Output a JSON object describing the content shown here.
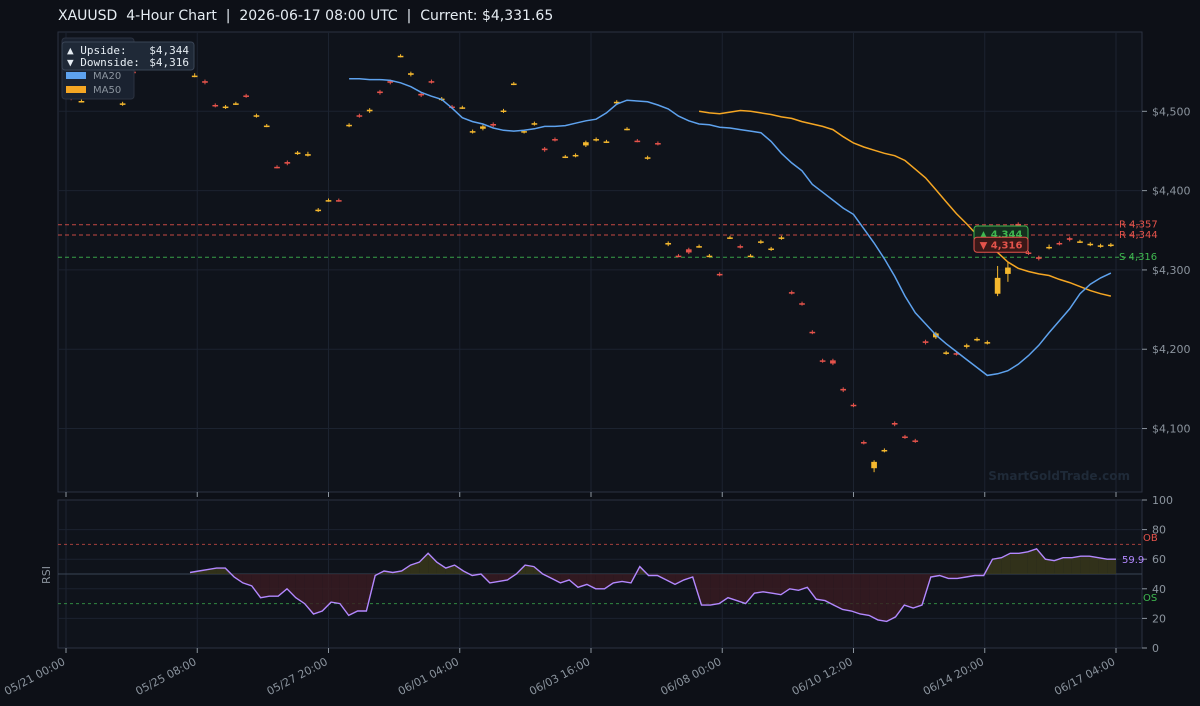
{
  "title": "XAUUSD  4-Hour Chart  |  2026-06-17 08:00 UTC  |  Current: $4,331.65",
  "watermark": "SmartGoldTrade.com",
  "colors": {
    "background": "#0d1017",
    "panel": "#0f131b",
    "grid": "#1c2330",
    "up": "#f5b82e",
    "down": "#e5534b",
    "ma20": "#5ea2ee",
    "ma50": "#f5a623",
    "rsi": "#b388ff",
    "resistance": "#e5534b",
    "support": "#3fb950"
  },
  "legend": {
    "upside_label": "▲ Upside:",
    "upside_value": "$4,344",
    "downside_label": "▼ Downside:",
    "downside_value": "$4,316",
    "ma20_label": "MA20",
    "ma50_label": "MA50"
  },
  "chart_data": {
    "type": "candlestick",
    "x_ticks": [
      "05/21 00:00",
      "05/25 08:00",
      "05/27 20:00",
      "06/01 04:00",
      "06/03 16:00",
      "06/08 00:00",
      "06/10 12:00",
      "06/14 20:00",
      "06/17 04:00"
    ],
    "price_axis": {
      "ylim": [
        4020,
        4600
      ],
      "ticks": [
        "$4,100",
        "$4,200",
        "$4,300",
        "$4,400",
        "$4,500"
      ],
      "tick_values": [
        4100,
        4200,
        4300,
        4400,
        4500
      ]
    },
    "levels": [
      {
        "label": "R 4,357",
        "value": 4357,
        "kind": "resistance"
      },
      {
        "label": "R 4,344",
        "value": 4344,
        "kind": "resistance"
      },
      {
        "label": "S 4,316",
        "value": 4316,
        "kind": "support"
      }
    ],
    "badges": [
      {
        "text": "▲ 4,344",
        "kind": "support"
      },
      {
        "text": "▼ 4,316",
        "kind": "resistance"
      }
    ],
    "candles": [
      [
        4518,
        4516,
        4520,
        4514
      ],
      [
        4513,
        4513,
        4515,
        4511
      ],
      [
        4520,
        4522,
        4524,
        4518
      ],
      [
        4520,
        4517,
        4521,
        4516
      ],
      [
        4520,
        4519,
        4521,
        4518
      ],
      [
        4509,
        4510,
        4512,
        4507
      ],
      [
        4550,
        4548,
        4552,
        4546
      ],
      [
        4564,
        4568,
        4570,
        4562
      ],
      [
        4568,
        4568,
        4570,
        4566
      ],
      [
        4573,
        4573,
        4575,
        4571
      ],
      [
        4570,
        4570,
        4572,
        4568
      ],
      [
        4562,
        4558,
        4564,
        4556
      ],
      [
        4545,
        4545,
        4548,
        4543
      ],
      [
        4538,
        4536,
        4540,
        4534
      ],
      [
        4508,
        4507,
        4510,
        4505
      ],
      [
        4505,
        4506,
        4508,
        4503
      ],
      [
        4510,
        4510,
        4512,
        4508
      ],
      [
        4520,
        4519,
        4522,
        4517
      ],
      [
        4494,
        4495,
        4497,
        4492
      ],
      [
        4482,
        4482,
        4484,
        4480
      ],
      [
        4430,
        4429,
        4432,
        4428
      ],
      [
        4436,
        4434,
        4438,
        4432
      ],
      [
        4447,
        4448,
        4450,
        4445
      ],
      [
        4444,
        4446,
        4449,
        4443
      ],
      [
        4375,
        4376,
        4378,
        4373
      ],
      [
        4388,
        4388,
        4390,
        4386
      ],
      [
        4388,
        4387,
        4390,
        4386
      ],
      [
        4482,
        4483,
        4485,
        4480
      ],
      [
        4495,
        4494,
        4497,
        4492
      ],
      [
        4500,
        4502,
        4504,
        4498
      ],
      [
        4525,
        4523,
        4527,
        4521
      ],
      [
        4538,
        4536,
        4540,
        4534
      ],
      [
        4570,
        4570,
        4572,
        4568
      ],
      [
        4546,
        4548,
        4550,
        4544
      ],
      [
        4522,
        4520,
        4524,
        4518
      ],
      [
        4538,
        4537,
        4540,
        4535
      ],
      [
        4515,
        4516,
        4518,
        4513
      ],
      [
        4506,
        4505,
        4508,
        4503
      ],
      [
        4505,
        4505,
        4507,
        4503
      ],
      [
        4474,
        4475,
        4477,
        4472
      ],
      [
        4478,
        4481,
        4483,
        4476
      ],
      [
        4484,
        4482,
        4486,
        4480
      ],
      [
        4500,
        4501,
        4503,
        4498
      ],
      [
        4535,
        4535,
        4537,
        4533
      ],
      [
        4474,
        4475,
        4477,
        4472
      ],
      [
        4484,
        4485,
        4487,
        4482
      ],
      [
        4453,
        4451,
        4455,
        4449
      ],
      [
        4465,
        4464,
        4467,
        4462
      ],
      [
        4443,
        4443,
        4445,
        4441
      ],
      [
        4444,
        4445,
        4447,
        4442
      ],
      [
        4457,
        4461,
        4463,
        4455
      ],
      [
        4464,
        4465,
        4467,
        4462
      ],
      [
        4462,
        4462,
        4464,
        4460
      ],
      [
        4510,
        4512,
        4514,
        4508
      ],
      [
        4478,
        4478,
        4480,
        4476
      ],
      [
        4463,
        4462,
        4465,
        4461
      ],
      [
        4441,
        4442,
        4444,
        4439
      ],
      [
        4460,
        4459,
        4462,
        4457
      ],
      [
        4332,
        4334,
        4336,
        4330
      ],
      [
        4318,
        4317,
        4320,
        4316
      ],
      [
        4326,
        4322,
        4328,
        4320
      ],
      [
        4330,
        4330,
        4332,
        4328
      ],
      [
        4318,
        4318,
        4320,
        4316
      ],
      [
        4295,
        4294,
        4297,
        4292
      ],
      [
        4341,
        4341,
        4343,
        4339
      ],
      [
        4330,
        4329,
        4332,
        4327
      ],
      [
        4318,
        4318,
        4320,
        4316
      ],
      [
        4335,
        4336,
        4338,
        4333
      ],
      [
        4326,
        4327,
        4329,
        4324
      ],
      [
        4340,
        4341,
        4343,
        4338
      ],
      [
        4272,
        4271,
        4274,
        4269
      ],
      [
        4258,
        4257,
        4260,
        4255
      ],
      [
        4222,
        4221,
        4224,
        4219
      ],
      [
        4186,
        4185,
        4188,
        4183
      ],
      [
        4186,
        4182,
        4188,
        4180
      ],
      [
        4150,
        4148,
        4152,
        4146
      ],
      [
        4130,
        4129,
        4132,
        4127
      ],
      [
        4083,
        4082,
        4085,
        4080
      ],
      [
        4050,
        4058,
        4060,
        4045
      ],
      [
        4072,
        4073,
        4075,
        4070
      ],
      [
        4107,
        4105,
        4109,
        4103
      ],
      [
        4090,
        4089,
        4092,
        4087
      ],
      [
        4085,
        4084,
        4087,
        4082
      ],
      [
        4210,
        4208,
        4212,
        4206
      ],
      [
        4215,
        4220,
        4222,
        4213
      ],
      [
        4195,
        4196,
        4198,
        4193
      ],
      [
        4195,
        4194,
        4197,
        4192
      ],
      [
        4203,
        4205,
        4207,
        4201
      ],
      [
        4212,
        4213,
        4215,
        4210
      ],
      [
        4208,
        4209,
        4211,
        4206
      ],
      [
        4270,
        4290,
        4305,
        4267
      ],
      [
        4295,
        4303,
        4310,
        4285
      ],
      [
        4358,
        4355,
        4360,
        4352
      ],
      [
        4322,
        4321,
        4324,
        4319
      ],
      [
        4316,
        4314,
        4318,
        4312
      ],
      [
        4328,
        4329,
        4332,
        4326
      ],
      [
        4334,
        4333,
        4336,
        4331
      ],
      [
        4340,
        4338,
        4342,
        4336
      ],
      [
        4336,
        4336,
        4338,
        4334
      ],
      [
        4332,
        4333,
        4335,
        4330
      ],
      [
        4330,
        4331,
        4333,
        4328
      ],
      [
        4331,
        4332,
        4334,
        4329
      ]
    ],
    "ma20": [
      4541,
      4541,
      4540,
      4540,
      4539,
      4536,
      4531,
      4524,
      4519,
      4515,
      4504,
      4492,
      4487,
      4484,
      4479,
      4476,
      4475,
      4476,
      4478,
      4481,
      4481,
      4482,
      4485,
      4488,
      4490,
      4498,
      4509,
      4514,
      4513,
      4512,
      4508,
      4503,
      4494,
      4488,
      4484,
      4483,
      4480,
      4479,
      4477,
      4475,
      4473,
      4462,
      4447,
      4435,
      4425,
      4408,
      4398,
      4388,
      4378,
      4370,
      4352,
      4334,
      4314,
      4292,
      4267,
      4246,
      4232,
      4218,
      4207,
      4197,
      4187,
      4177,
      4167,
      4169,
      4173,
      4181,
      4192,
      4205,
      4221,
      4236,
      4251,
      4270,
      4282,
      4290,
      4296
    ],
    "ma50": [
      4500,
      4498,
      4497,
      4499,
      4501,
      4500,
      4498,
      4496,
      4493,
      4491,
      4487,
      4484,
      4481,
      4477,
      4468,
      4460,
      4455,
      4451,
      4447,
      4444,
      4438,
      4427,
      4416,
      4401,
      4386,
      4371,
      4358,
      4344,
      4333,
      4322,
      4310,
      4302,
      4298,
      4295,
      4293,
      4288,
      4284,
      4279,
      4274,
      4270,
      4267
    ],
    "rsi": {
      "ylim": [
        0,
        100
      ],
      "ticks": [
        0,
        20,
        40,
        60,
        80,
        100
      ],
      "ob": 70,
      "os": 30,
      "ob_label": "OB",
      "os_label": "OS",
      "axis_label": "RSI",
      "current_label": "59.9",
      "values": [
        51,
        52,
        53,
        54,
        54,
        48,
        44,
        42,
        34,
        35,
        35,
        40,
        34,
        30,
        23,
        25,
        31,
        30,
        22,
        25,
        25,
        49,
        52,
        51,
        52,
        56,
        58,
        64,
        58,
        54,
        56,
        52,
        49,
        50,
        44,
        45,
        46,
        50,
        56,
        55,
        50,
        47,
        44,
        46,
        41,
        43,
        40,
        40,
        44,
        45,
        44,
        55,
        49,
        49,
        46,
        43,
        46,
        48,
        29,
        29,
        30,
        34,
        32,
        30,
        37,
        38,
        37,
        36,
        40,
        39,
        41,
        33,
        32,
        29,
        26,
        25,
        23,
        22,
        19,
        18,
        21,
        29,
        27,
        29,
        48,
        49,
        47,
        47,
        48,
        49,
        49,
        60,
        61,
        64,
        64,
        65,
        67,
        60,
        59,
        61,
        61,
        62,
        62,
        61,
        60,
        60
      ]
    }
  }
}
